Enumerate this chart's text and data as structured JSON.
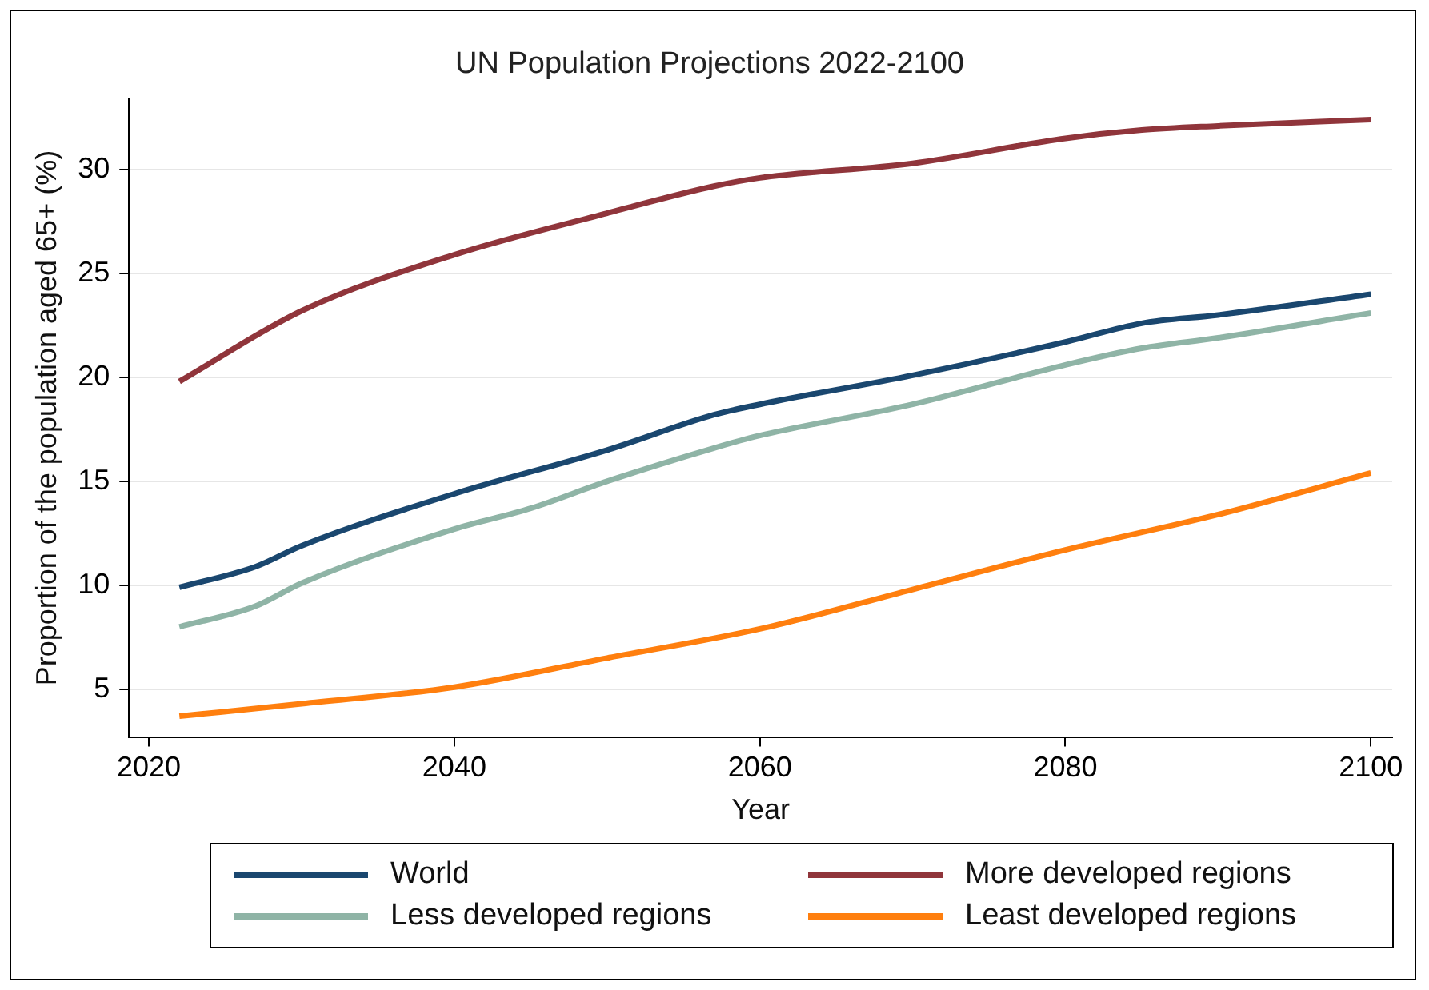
{
  "chart_data": {
    "type": "line",
    "title": "UN Population Projections 2022-2100",
    "xlabel": "Year",
    "ylabel": "Proportion of the population aged 65+ (%)",
    "xlim": [
      2018.7,
      2101.4
    ],
    "xticks": [
      2020,
      2040,
      2060,
      2080,
      2100
    ],
    "ylim": [
      2.7,
      33.4
    ],
    "yticks": [
      5,
      10,
      15,
      20,
      25,
      30
    ],
    "grid": "y",
    "legend": "bottom",
    "marker": "none",
    "line_style": "solid",
    "series": [
      {
        "name": "World",
        "color": "#1a476f",
        "x": [
          2022,
          2027,
          2030,
          2040,
          2050,
          2057,
          2060,
          2070,
          2080,
          2085,
          2090,
          2100
        ],
        "values": [
          9.9,
          10.9,
          11.9,
          14.4,
          16.5,
          18.2,
          18.7,
          20.1,
          21.7,
          22.6,
          23.0,
          24.0
        ]
      },
      {
        "name": "More developed regions",
        "color": "#90353b",
        "x": [
          2022,
          2030,
          2040,
          2050,
          2057,
          2060,
          2070,
          2080,
          2085,
          2090,
          2100
        ],
        "values": [
          19.8,
          23.2,
          25.9,
          27.9,
          29.2,
          29.6,
          30.3,
          31.5,
          31.9,
          32.1,
          32.4
        ]
      },
      {
        "name": "Less developed regions",
        "color": "#8fb4a6",
        "x": [
          2022,
          2027,
          2030,
          2040,
          2045,
          2050,
          2057,
          2060,
          2070,
          2080,
          2085,
          2090,
          2100
        ],
        "values": [
          8.0,
          9.0,
          10.1,
          12.7,
          13.7,
          15.0,
          16.6,
          17.2,
          18.7,
          20.6,
          21.4,
          21.9,
          23.1
        ]
      },
      {
        "name": "Least developed regions",
        "color": "#ff7f0e",
        "x": [
          2022,
          2030,
          2040,
          2050,
          2060,
          2070,
          2080,
          2090,
          2100
        ],
        "values": [
          3.7,
          4.3,
          5.1,
          6.5,
          7.9,
          9.8,
          11.7,
          13.4,
          15.4
        ]
      }
    ]
  }
}
